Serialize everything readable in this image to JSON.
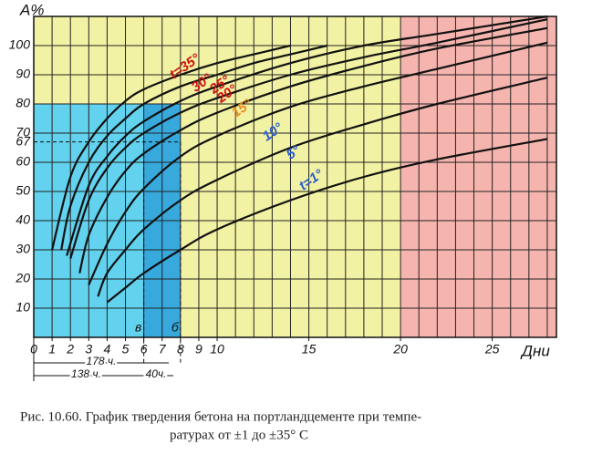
{
  "chart_data": {
    "type": "line",
    "ylabel": "A%",
    "xlabel": "Дни",
    "caption": [
      "Рис. 10.60. График твердения бетона на портландцементе при темпе-",
      "ратурах от ±1 до ±35° С"
    ],
    "xlim": [
      0,
      28.5
    ],
    "ylim": [
      0,
      110
    ],
    "xticks": [
      0,
      1,
      2,
      3,
      4,
      5,
      6,
      7,
      8,
      9,
      10,
      15,
      20,
      25
    ],
    "yticks": [
      10,
      20,
      30,
      40,
      50,
      60,
      67,
      70,
      80,
      90,
      100
    ],
    "grid": true,
    "background": "#f2f2a4",
    "regions": [
      {
        "x": [
          0,
          8
        ],
        "y": [
          0,
          80
        ],
        "color": "#62d2ee"
      },
      {
        "x": [
          6,
          8
        ],
        "y": [
          0,
          80
        ],
        "color": "#38a9dd"
      },
      {
        "x": [
          20,
          28.5
        ],
        "y": [
          0,
          110
        ],
        "color": "#f6b4ae"
      }
    ],
    "reference": {
      "y": 67,
      "x": 8
    },
    "markers": [
      {
        "x": 6,
        "label": "в"
      },
      {
        "x": 8,
        "label": "б"
      }
    ],
    "dimensions": [
      "178 ч.",
      "138 ч.",
      "40ч."
    ],
    "series": [
      {
        "name": "t=35°",
        "color": "#d01010",
        "x": [
          1,
          2,
          3,
          4,
          5,
          6,
          8,
          10,
          12,
          14
        ],
        "values": [
          30,
          55,
          67,
          75,
          81,
          85,
          90,
          94,
          97,
          100
        ]
      },
      {
        "name": "30°",
        "color": "#d01010",
        "x": [
          1.5,
          2,
          3,
          4,
          5,
          6,
          8,
          10,
          12,
          14,
          16
        ],
        "values": [
          30,
          45,
          60,
          69,
          75,
          80,
          86,
          90,
          94,
          97,
          100
        ]
      },
      {
        "name": "25°",
        "color": "#d01010",
        "x": [
          1.8,
          3,
          4,
          5,
          6,
          8,
          10,
          14,
          18,
          22,
          28
        ],
        "values": [
          28,
          52,
          62,
          69,
          74,
          81,
          86,
          94,
          100,
          104,
          110
        ]
      },
      {
        "name": "20°",
        "color": "#d01010",
        "x": [
          2,
          3,
          4,
          5,
          6,
          8,
          10,
          14,
          18,
          22,
          28
        ],
        "values": [
          27,
          47,
          58,
          65,
          70,
          77,
          82,
          90,
          96,
          101,
          109
        ]
      },
      {
        "name": "15°",
        "color": "#e88a1a",
        "x": [
          2.5,
          3,
          4,
          5,
          6,
          8,
          10,
          14,
          18,
          22,
          28
        ],
        "values": [
          22,
          35,
          48,
          57,
          63,
          71,
          77,
          86,
          93,
          99,
          106
        ]
      },
      {
        "name": "10°",
        "color": "#2a5fd0",
        "x": [
          3,
          4,
          5,
          6,
          8,
          10,
          14,
          18,
          22,
          28
        ],
        "values": [
          18,
          32,
          43,
          51,
          62,
          69,
          79,
          86,
          92,
          101
        ]
      },
      {
        "name": "5°",
        "color": "#2a5fd0",
        "x": [
          3.5,
          4,
          5,
          6,
          8,
          10,
          14,
          18,
          22,
          28
        ],
        "values": [
          14,
          22,
          30,
          37,
          47,
          54,
          65,
          73,
          80,
          89
        ]
      },
      {
        "name": "t=1°",
        "color": "#2a5fd0",
        "x": [
          4,
          5,
          6,
          8,
          10,
          14,
          18,
          22,
          28
        ],
        "values": [
          12,
          17,
          22,
          30,
          37,
          47,
          55,
          61,
          68
        ]
      }
    ]
  }
}
